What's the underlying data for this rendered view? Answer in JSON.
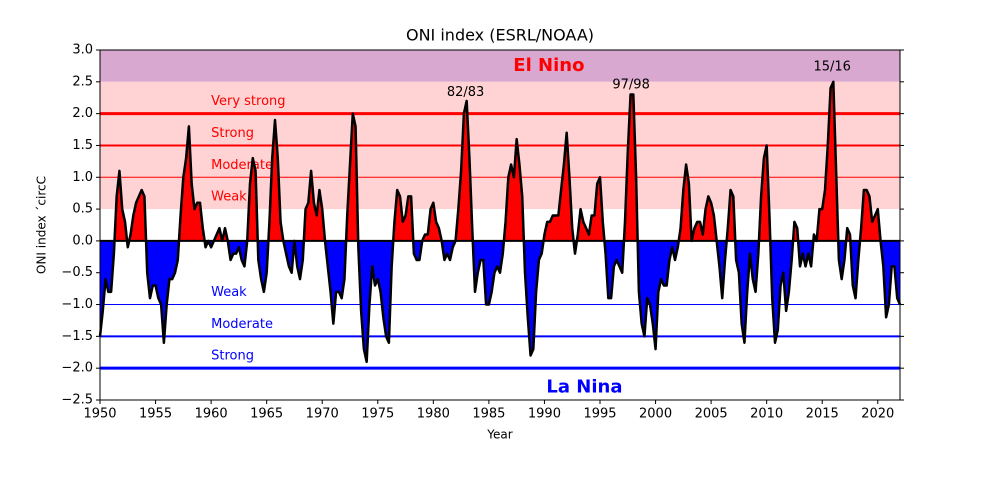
{
  "chart_data": {
    "type": "area",
    "title": "ONI index (ESRL/NOAA)",
    "x_label": "Year",
    "y_label": "ONI index ´circC",
    "xlim": [
      1950,
      2022
    ],
    "ylim": [
      -2.5,
      3.0
    ],
    "xticks": [
      1950,
      1955,
      1960,
      1965,
      1970,
      1975,
      1980,
      1985,
      1990,
      1995,
      2000,
      2005,
      2010,
      2015,
      2020
    ],
    "yticks": [
      {
        "value": -2.5,
        "label": "−2.5"
      },
      {
        "value": -2,
        "label": "−2.0"
      },
      {
        "value": -1.5,
        "label": "−1.5"
      },
      {
        "value": -1,
        "label": "−1.0"
      },
      {
        "value": -0.5,
        "label": "−0.5"
      },
      {
        "value": 0,
        "label": "0.0"
      },
      0.5,
      {
        "value": 1,
        "label": "1.0"
      },
      1.5,
      {
        "value": 2,
        "label": "2.0"
      },
      2.5,
      {
        "value": 3,
        "label": "3.0"
      }
    ],
    "positive_color": "#ff0000",
    "negative_color": "#0000ff",
    "line_color": "#000000",
    "bands": [
      {
        "from": 2.5,
        "to": 3.0,
        "color": "#d8a8d0"
      },
      {
        "from": 0.5,
        "to": 2.5,
        "color": "#ffd3d3"
      }
    ],
    "levels": [
      {
        "label": "Very strong",
        "value": 2.0,
        "color": "#ff0000",
        "line_width": 3
      },
      {
        "label": "Strong",
        "value": 1.5,
        "color": "#ff0000",
        "line_width": 2
      },
      {
        "label": "Moderate",
        "value": 1.0,
        "color": "#ff0000",
        "line_width": 1
      },
      {
        "label": "Weak",
        "value": 0.5,
        "color": "#ff0000"
      },
      {
        "label": "Weak",
        "value": -1.0,
        "color": "#0000ff",
        "line_width": 1
      },
      {
        "label": "Moderate",
        "value": -1.5,
        "color": "#0000ff",
        "line_width": 2
      },
      {
        "label": "Strong",
        "value": -2.0,
        "color": "#0000ff",
        "line_width": 3
      }
    ],
    "level_label_x": 1960,
    "annotations": [
      {
        "text": "El Nino",
        "x": 1990.4,
        "y": 2.75,
        "color": "#ff0000",
        "bold": true
      },
      {
        "text": "La Nina",
        "x": 1993.6,
        "y": -2.3,
        "color": "#0000ff",
        "bold": true
      },
      {
        "text": "82/83",
        "x": 1982.9,
        "y": 2.33,
        "color": "#000000"
      },
      {
        "text": "97/98",
        "x": 1997.8,
        "y": 2.45,
        "color": "#000000"
      },
      {
        "text": "15/16",
        "x": 2015.9,
        "y": 2.73,
        "color": "#000000"
      }
    ],
    "x": [
      1950,
      1950.25,
      1950.5,
      1950.75,
      1951,
      1951.25,
      1951.5,
      1951.75,
      1952,
      1952.25,
      1952.5,
      1952.75,
      1953,
      1953.25,
      1953.5,
      1953.75,
      1954,
      1954.25,
      1954.5,
      1954.75,
      1955,
      1955.25,
      1955.5,
      1955.75,
      1956,
      1956.25,
      1956.5,
      1956.75,
      1957,
      1957.25,
      1957.5,
      1957.75,
      1958,
      1958.25,
      1958.5,
      1958.75,
      1959,
      1959.25,
      1959.5,
      1959.75,
      1960,
      1960.25,
      1960.5,
      1960.75,
      1961,
      1961.25,
      1961.5,
      1961.75,
      1962,
      1962.25,
      1962.5,
      1962.75,
      1963,
      1963.25,
      1963.5,
      1963.75,
      1964,
      1964.25,
      1964.5,
      1964.75,
      1965,
      1965.25,
      1965.5,
      1965.75,
      1966,
      1966.25,
      1966.5,
      1966.75,
      1967,
      1967.25,
      1967.5,
      1967.75,
      1968,
      1968.25,
      1968.5,
      1968.75,
      1969,
      1969.25,
      1969.5,
      1969.75,
      1970,
      1970.25,
      1970.5,
      1970.75,
      1971,
      1971.25,
      1971.5,
      1971.75,
      1972,
      1972.25,
      1972.5,
      1972.75,
      1973,
      1973.25,
      1973.5,
      1973.75,
      1974,
      1974.25,
      1974.5,
      1974.75,
      1975,
      1975.25,
      1975.5,
      1975.75,
      1976,
      1976.25,
      1976.5,
      1976.75,
      1977,
      1977.25,
      1977.5,
      1977.75,
      1978,
      1978.25,
      1978.5,
      1978.75,
      1979,
      1979.25,
      1979.5,
      1979.75,
      1980,
      1980.25,
      1980.5,
      1980.75,
      1981,
      1981.25,
      1981.5,
      1981.75,
      1982,
      1982.25,
      1982.5,
      1982.75,
      1983,
      1983.25,
      1983.5,
      1983.75,
      1984,
      1984.25,
      1984.5,
      1984.75,
      1985,
      1985.25,
      1985.5,
      1985.75,
      1986,
      1986.25,
      1986.5,
      1986.75,
      1987,
      1987.25,
      1987.5,
      1987.75,
      1988,
      1988.25,
      1988.5,
      1988.75,
      1989,
      1989.25,
      1989.5,
      1989.75,
      1990,
      1990.25,
      1990.5,
      1990.75,
      1991,
      1991.25,
      1991.5,
      1991.75,
      1992,
      1992.25,
      1992.5,
      1992.75,
      1993,
      1993.25,
      1993.5,
      1993.75,
      1994,
      1994.25,
      1994.5,
      1994.75,
      1995,
      1995.25,
      1995.5,
      1995.75,
      1996,
      1996.25,
      1996.5,
      1996.75,
      1997,
      1997.25,
      1997.5,
      1997.75,
      1998,
      1998.25,
      1998.5,
      1998.75,
      1999,
      1999.25,
      1999.5,
      1999.75,
      2000,
      2000.25,
      2000.5,
      2000.75,
      2001,
      2001.25,
      2001.5,
      2001.75,
      2002,
      2002.25,
      2002.5,
      2002.75,
      2003,
      2003.25,
      2003.5,
      2003.75,
      2004,
      2004.25,
      2004.5,
      2004.75,
      2005,
      2005.25,
      2005.5,
      2005.75,
      2006,
      2006.25,
      2006.5,
      2006.75,
      2007,
      2007.25,
      2007.5,
      2007.75,
      2008,
      2008.25,
      2008.5,
      2008.75,
      2009,
      2009.25,
      2009.5,
      2009.75,
      2010,
      2010.25,
      2010.5,
      2010.75,
      2011,
      2011.25,
      2011.5,
      2011.75,
      2012,
      2012.25,
      2012.5,
      2012.75,
      2013,
      2013.25,
      2013.5,
      2013.75,
      2014,
      2014.25,
      2014.5,
      2014.75,
      2015,
      2015.25,
      2015.5,
      2015.75,
      2016,
      2016.25,
      2016.5,
      2016.75,
      2017,
      2017.25,
      2017.5,
      2017.75,
      2018,
      2018.25,
      2018.5,
      2018.75,
      2019,
      2019.25,
      2019.5,
      2019.75,
      2020,
      2020.25,
      2020.5,
      2020.75,
      2021,
      2021.25,
      2021.5,
      2021.75,
      2022
    ],
    "values": [
      -1.5,
      -1.1,
      -0.6,
      -0.8,
      -0.8,
      -0.2,
      0.7,
      1.1,
      0.5,
      0.3,
      -0.1,
      0.1,
      0.4,
      0.6,
      0.7,
      0.8,
      0.7,
      -0.5,
      -0.9,
      -0.7,
      -0.7,
      -0.9,
      -1.0,
      -1.6,
      -1.0,
      -0.6,
      -0.6,
      -0.5,
      -0.3,
      0.4,
      1.0,
      1.3,
      1.8,
      0.9,
      0.5,
      0.6,
      0.6,
      0.2,
      -0.1,
      0.0,
      -0.1,
      0.0,
      0.1,
      0.2,
      0.0,
      0.2,
      0.0,
      -0.3,
      -0.2,
      -0.2,
      -0.1,
      -0.3,
      -0.4,
      0.0,
      0.9,
      1.3,
      1.1,
      -0.3,
      -0.6,
      -0.8,
      -0.5,
      0.3,
      1.3,
      1.9,
      1.3,
      0.3,
      0.0,
      -0.2,
      -0.4,
      -0.5,
      0.0,
      -0.4,
      -0.6,
      -0.3,
      0.5,
      0.6,
      1.1,
      0.6,
      0.4,
      0.8,
      0.5,
      0.0,
      -0.4,
      -0.8,
      -1.3,
      -0.8,
      -0.8,
      -0.9,
      -0.6,
      0.4,
      1.2,
      2.0,
      1.8,
      -0.1,
      -1.1,
      -1.7,
      -1.9,
      -1.0,
      -0.4,
      -0.7,
      -0.6,
      -0.8,
      -1.2,
      -1.5,
      -1.6,
      -0.4,
      0.3,
      0.8,
      0.7,
      0.3,
      0.4,
      0.7,
      0.7,
      -0.2,
      -0.3,
      -0.3,
      0.0,
      0.1,
      0.1,
      0.5,
      0.6,
      0.3,
      0.2,
      0.0,
      -0.3,
      -0.2,
      -0.3,
      -0.1,
      0.0,
      0.5,
      1.1,
      2.0,
      2.2,
      1.3,
      0.2,
      -0.8,
      -0.5,
      -0.3,
      -0.3,
      -1.0,
      -1.0,
      -0.8,
      -0.5,
      -0.4,
      -0.5,
      -0.2,
      0.3,
      1.0,
      1.2,
      1.0,
      1.6,
      1.2,
      0.7,
      -0.5,
      -1.2,
      -1.8,
      -1.7,
      -0.8,
      -0.3,
      -0.2,
      0.1,
      0.3,
      0.3,
      0.4,
      0.4,
      0.4,
      0.8,
      1.2,
      1.7,
      1.0,
      0.2,
      -0.2,
      0.1,
      0.5,
      0.3,
      0.2,
      0.1,
      0.4,
      0.4,
      0.9,
      1.0,
      0.3,
      -0.2,
      -0.9,
      -0.9,
      -0.4,
      -0.3,
      -0.4,
      -0.5,
      0.3,
      1.4,
      2.3,
      2.3,
      1.0,
      -0.8,
      -1.3,
      -1.5,
      -0.9,
      -1.0,
      -1.3,
      -1.7,
      -0.8,
      -0.6,
      -0.7,
      -0.7,
      -0.3,
      -0.1,
      -0.3,
      -0.1,
      0.2,
      0.8,
      1.2,
      0.9,
      0.0,
      0.2,
      0.3,
      0.3,
      0.1,
      0.5,
      0.7,
      0.6,
      0.4,
      0.0,
      -0.4,
      -0.9,
      -0.3,
      0.2,
      0.8,
      0.7,
      -0.3,
      -0.5,
      -1.3,
      -1.6,
      -0.8,
      -0.2,
      -0.6,
      -0.8,
      -0.2,
      0.7,
      1.3,
      1.5,
      0.4,
      -0.9,
      -1.6,
      -1.4,
      -0.7,
      -0.5,
      -1.1,
      -0.8,
      -0.3,
      0.3,
      0.2,
      -0.4,
      -0.2,
      -0.4,
      -0.2,
      -0.4,
      0.1,
      0.0,
      0.5,
      0.5,
      0.8,
      1.5,
      2.4,
      2.5,
      1.1,
      -0.3,
      -0.6,
      -0.3,
      0.2,
      0.1,
      -0.7,
      -0.9,
      -0.3,
      0.2,
      0.8,
      0.8,
      0.7,
      0.3,
      0.4,
      0.5,
      0.0,
      -0.4,
      -1.2,
      -1.0,
      -0.4,
      -0.4,
      -0.9,
      -1.0
    ]
  }
}
